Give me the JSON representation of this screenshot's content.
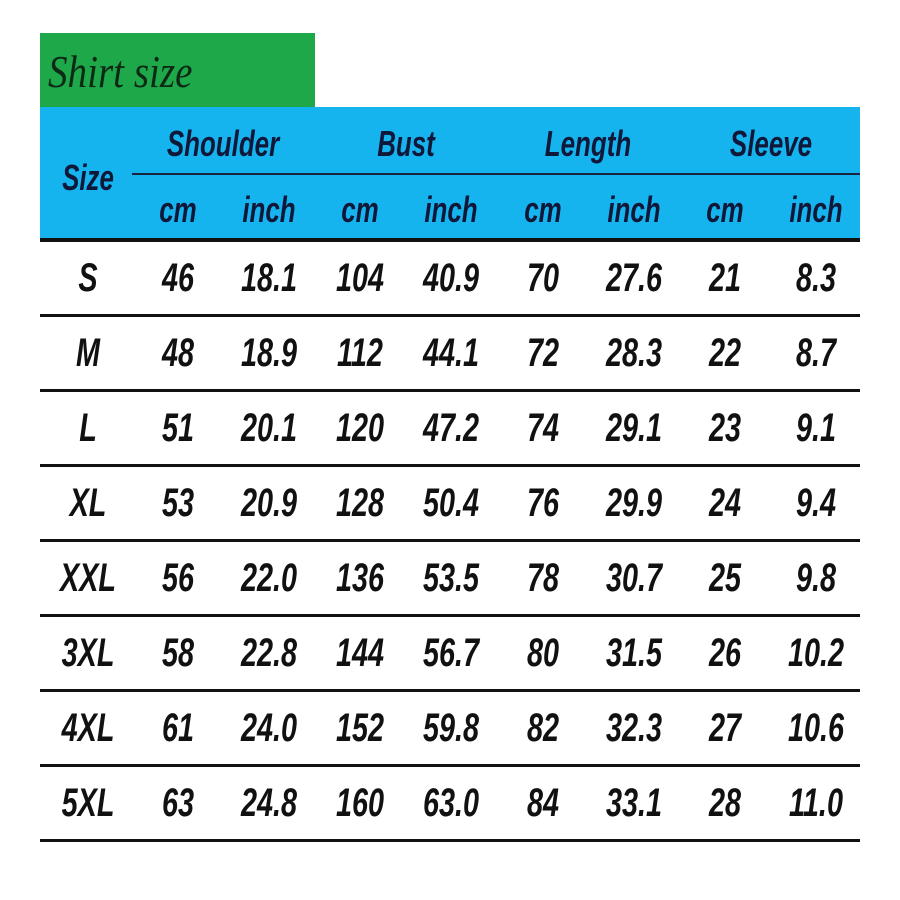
{
  "title": "Shirt size",
  "colors": {
    "title_bg": "#1fa84a",
    "header_bg": "#16b4ee"
  },
  "header": {
    "size": "Size",
    "groups": [
      "Shoulder",
      "Bust",
      "Length",
      "Sleeve"
    ],
    "units": [
      "cm",
      "inch",
      "cm",
      "inch",
      "cm",
      "inch",
      "cm",
      "inch"
    ]
  },
  "rows": [
    {
      "size": "S",
      "values": [
        "46",
        "18.1",
        "104",
        "40.9",
        "70",
        "27.6",
        "21",
        "8.3"
      ]
    },
    {
      "size": "M",
      "values": [
        "48",
        "18.9",
        "112",
        "44.1",
        "72",
        "28.3",
        "22",
        "8.7"
      ]
    },
    {
      "size": "L",
      "values": [
        "51",
        "20.1",
        "120",
        "47.2",
        "74",
        "29.1",
        "23",
        "9.1"
      ]
    },
    {
      "size": "XL",
      "values": [
        "53",
        "20.9",
        "128",
        "50.4",
        "76",
        "29.9",
        "24",
        "9.4"
      ]
    },
    {
      "size": "XXL",
      "values": [
        "56",
        "22.0",
        "136",
        "53.5",
        "78",
        "30.7",
        "25",
        "9.8"
      ]
    },
    {
      "size": "3XL",
      "values": [
        "58",
        "22.8",
        "144",
        "56.7",
        "80",
        "31.5",
        "26",
        "10.2"
      ]
    },
    {
      "size": "4XL",
      "values": [
        "61",
        "24.0",
        "152",
        "59.8",
        "82",
        "32.3",
        "27",
        "10.6"
      ]
    },
    {
      "size": "5XL",
      "values": [
        "63",
        "24.8",
        "160",
        "63.0",
        "84",
        "33.1",
        "28",
        "11.0"
      ]
    }
  ]
}
